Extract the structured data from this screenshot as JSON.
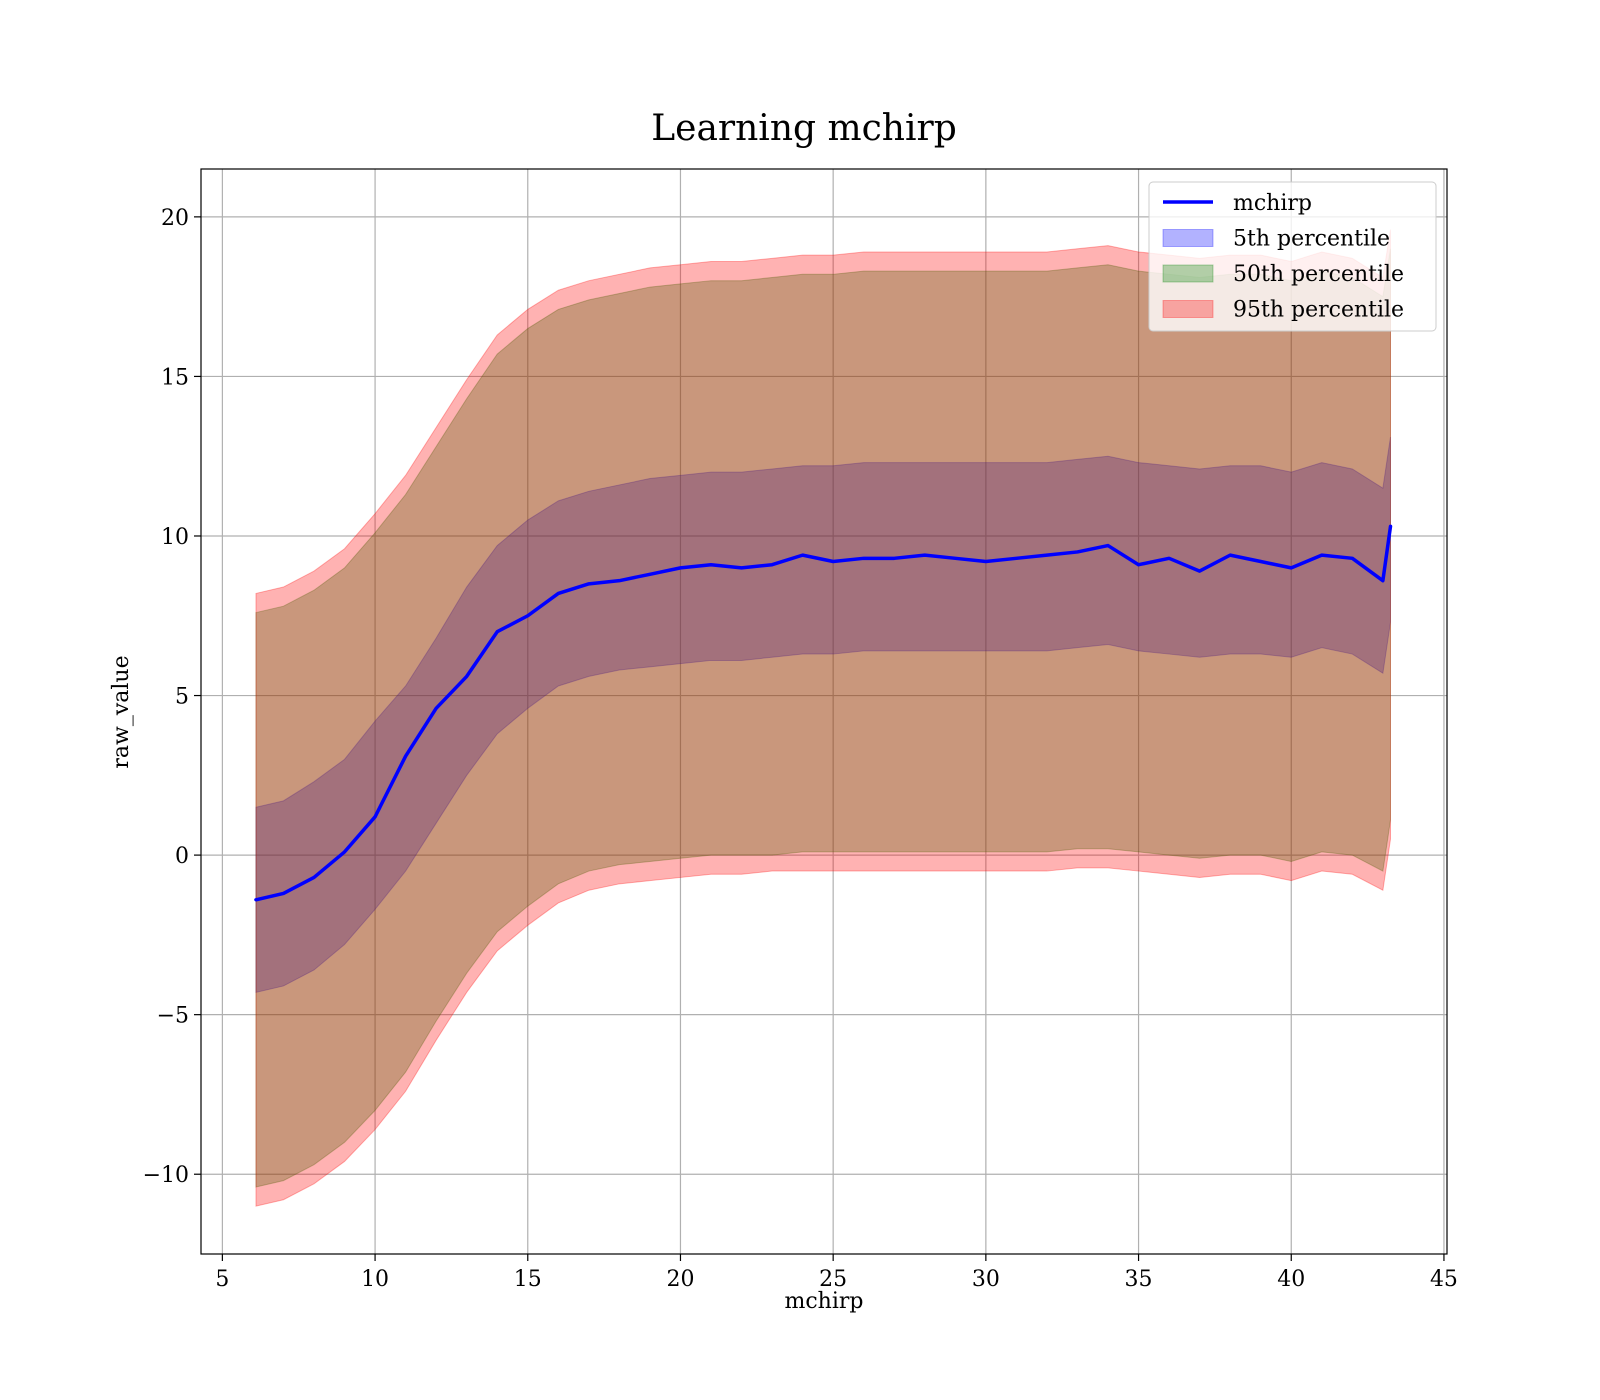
{
  "chart_data": {
    "type": "line",
    "title": "Learning mchirp",
    "xlabel": "mchirp",
    "ylabel": "raw_value",
    "xlim": [
      4.3,
      45.1
    ],
    "ylim": [
      -12.5,
      21.5
    ],
    "xticks": [
      5,
      10,
      15,
      20,
      25,
      30,
      35,
      40,
      45
    ],
    "yticks": [
      -10,
      -5,
      0,
      5,
      10,
      15,
      20
    ],
    "ytick_labels": [
      "−10",
      "−5",
      "0",
      "5",
      "10",
      "15",
      "20"
    ],
    "grid": true,
    "legend_position": "top-right",
    "colors": {
      "line": "#0000ff",
      "band_5": "#0000ff",
      "band_50": "#008000",
      "band_95": "#ff0000"
    },
    "x": [
      6.1,
      7,
      8,
      9,
      10,
      11,
      12,
      13,
      14,
      15,
      16,
      17,
      18,
      19,
      20,
      21,
      22,
      23,
      24,
      25,
      26,
      27,
      28,
      29,
      30,
      31,
      32,
      33,
      34,
      35,
      36,
      37,
      38,
      39,
      40,
      41,
      42,
      43,
      43.25
    ],
    "series": [
      {
        "name": "mchirp",
        "kind": "line",
        "values": [
          -1.4,
          -1.2,
          -0.7,
          0.1,
          1.2,
          3.1,
          4.6,
          5.6,
          7.0,
          7.5,
          8.2,
          8.5,
          8.6,
          8.8,
          9.0,
          9.1,
          9.0,
          9.1,
          9.4,
          9.2,
          9.3,
          9.3,
          9.4,
          9.3,
          9.2,
          9.3,
          9.4,
          9.5,
          9.7,
          9.1,
          9.3,
          8.9,
          9.4,
          9.2,
          9.0,
          9.4,
          9.3,
          8.6,
          10.3
        ]
      },
      {
        "name": "5th percentile",
        "kind": "band",
        "lower": [
          -4.3,
          -4.1,
          -3.6,
          -2.8,
          -1.7,
          -0.5,
          1.0,
          2.5,
          3.8,
          4.6,
          5.3,
          5.6,
          5.8,
          5.9,
          6.0,
          6.1,
          6.1,
          6.2,
          6.3,
          6.3,
          6.4,
          6.4,
          6.4,
          6.4,
          6.4,
          6.4,
          6.4,
          6.5,
          6.6,
          6.4,
          6.3,
          6.2,
          6.3,
          6.3,
          6.2,
          6.5,
          6.3,
          5.7,
          7.3
        ],
        "upper": [
          1.5,
          1.7,
          2.3,
          3.0,
          4.2,
          5.3,
          6.8,
          8.4,
          9.7,
          10.5,
          11.1,
          11.4,
          11.6,
          11.8,
          11.9,
          12.0,
          12.0,
          12.1,
          12.2,
          12.2,
          12.3,
          12.3,
          12.3,
          12.3,
          12.3,
          12.3,
          12.3,
          12.4,
          12.5,
          12.3,
          12.2,
          12.1,
          12.2,
          12.2,
          12.0,
          12.3,
          12.1,
          11.5,
          13.1
        ]
      },
      {
        "name": "50th percentile",
        "kind": "band",
        "lower": [
          -10.4,
          -10.2,
          -9.7,
          -9.0,
          -8.0,
          -6.8,
          -5.2,
          -3.7,
          -2.4,
          -1.6,
          -0.9,
          -0.5,
          -0.3,
          -0.2,
          -0.1,
          0.0,
          0.0,
          0.0,
          0.1,
          0.1,
          0.1,
          0.1,
          0.1,
          0.1,
          0.1,
          0.1,
          0.1,
          0.2,
          0.2,
          0.1,
          0.0,
          -0.1,
          0.0,
          0.0,
          -0.2,
          0.1,
          0.0,
          -0.5,
          1.1
        ],
        "upper": [
          7.6,
          7.8,
          8.3,
          9.0,
          10.1,
          11.3,
          12.8,
          14.3,
          15.7,
          16.5,
          17.1,
          17.4,
          17.6,
          17.8,
          17.9,
          18.0,
          18.0,
          18.1,
          18.2,
          18.2,
          18.3,
          18.3,
          18.3,
          18.3,
          18.3,
          18.3,
          18.3,
          18.4,
          18.5,
          18.3,
          18.2,
          18.1,
          18.2,
          18.2,
          18.0,
          18.3,
          18.1,
          17.5,
          19.0
        ]
      },
      {
        "name": "95th percentile",
        "kind": "band",
        "lower": [
          -11.0,
          -10.8,
          -10.3,
          -9.6,
          -8.6,
          -7.4,
          -5.8,
          -4.3,
          -3.0,
          -2.2,
          -1.5,
          -1.1,
          -0.9,
          -0.8,
          -0.7,
          -0.6,
          -0.6,
          -0.5,
          -0.5,
          -0.5,
          -0.5,
          -0.5,
          -0.5,
          -0.5,
          -0.5,
          -0.5,
          -0.5,
          -0.4,
          -0.4,
          -0.5,
          -0.6,
          -0.7,
          -0.6,
          -0.6,
          -0.8,
          -0.5,
          -0.6,
          -1.1,
          0.5
        ],
        "upper": [
          8.2,
          8.4,
          8.9,
          9.6,
          10.7,
          11.9,
          13.4,
          14.9,
          16.3,
          17.1,
          17.7,
          18.0,
          18.2,
          18.4,
          18.5,
          18.6,
          18.6,
          18.7,
          18.8,
          18.8,
          18.9,
          18.9,
          18.9,
          18.9,
          18.9,
          18.9,
          18.9,
          19.0,
          19.1,
          18.9,
          18.8,
          18.7,
          18.8,
          18.8,
          18.6,
          18.9,
          18.7,
          18.1,
          19.6
        ]
      }
    ],
    "legend": [
      {
        "label": "mchirp",
        "kind": "line"
      },
      {
        "label": "5th percentile",
        "kind": "patch"
      },
      {
        "label": "50th percentile",
        "kind": "patch"
      },
      {
        "label": "95th percentile",
        "kind": "patch"
      }
    ]
  }
}
